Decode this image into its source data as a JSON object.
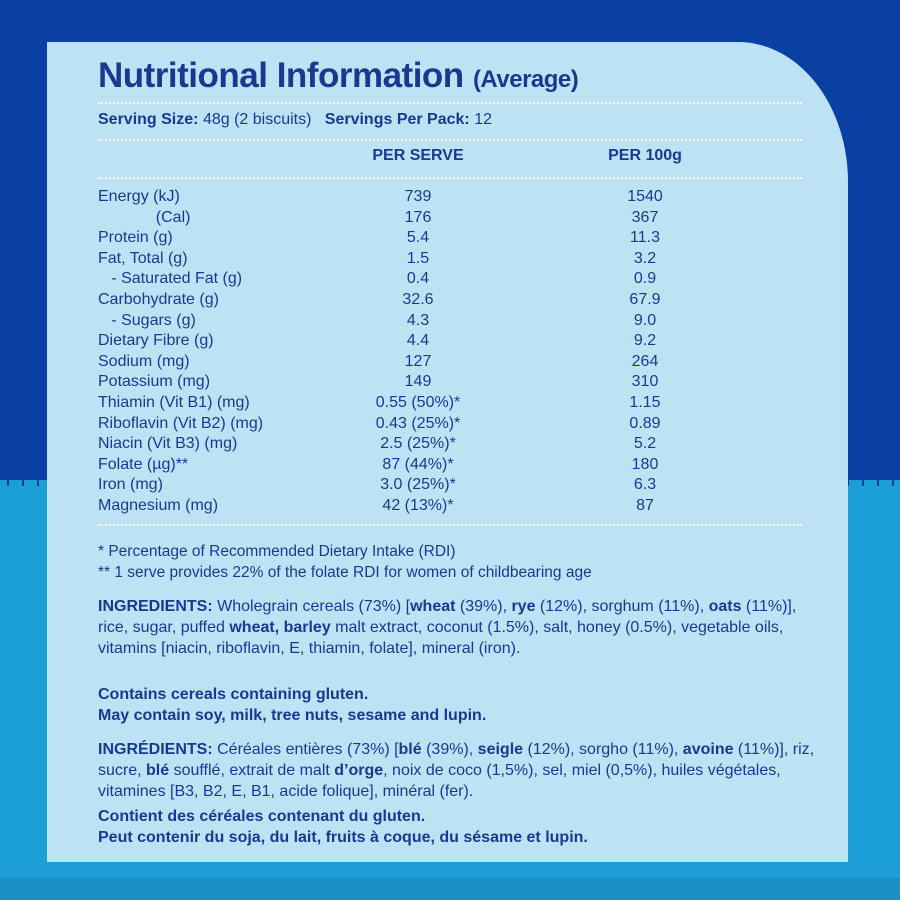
{
  "colors": {
    "background_top": "#0a3fa3",
    "background_bottom": "#1b9ed3",
    "panel": "#bde2f3",
    "text": "#173a8f"
  },
  "title": "Nutritional Information",
  "title_sub": "(Average)",
  "serving": {
    "size_label": "Serving Size:",
    "size_value": "48g (2 biscuits)",
    "per_pack_label": "Servings Per Pack:",
    "per_pack_value": "12"
  },
  "columns": {
    "per_serve": "PER SERVE",
    "per_100g": "PER 100g"
  },
  "rows": [
    {
      "label": "Energy (kJ)",
      "per_serve": "739",
      "per_100g": "1540"
    },
    {
      "label": "             (Cal)",
      "per_serve": "176",
      "per_100g": "367"
    },
    {
      "label": "Protein (g)",
      "per_serve": "5.4",
      "per_100g": "11.3"
    },
    {
      "label": "Fat, Total (g)",
      "per_serve": "1.5",
      "per_100g": "3.2"
    },
    {
      "label": "   - Saturated Fat (g)",
      "per_serve": "0.4",
      "per_100g": "0.9"
    },
    {
      "label": "Carbohydrate (g)",
      "per_serve": "32.6",
      "per_100g": "67.9"
    },
    {
      "label": "   - Sugars (g)",
      "per_serve": "4.3",
      "per_100g": "9.0"
    },
    {
      "label": "Dietary Fibre (g)",
      "per_serve": "4.4",
      "per_100g": "9.2"
    },
    {
      "label": "Sodium (mg)",
      "per_serve": "127",
      "per_100g": "264"
    },
    {
      "label": "Potassium (mg)",
      "per_serve": "149",
      "per_100g": "310"
    },
    {
      "label": "Thiamin (Vit B1) (mg)",
      "per_serve": "0.55 (50%)*",
      "per_100g": "1.15"
    },
    {
      "label": "Riboflavin (Vit B2) (mg)",
      "per_serve": "0.43 (25%)*",
      "per_100g": "0.89"
    },
    {
      "label": "Niacin (Vit B3) (mg)",
      "per_serve": "2.5 (25%)*",
      "per_100g": "5.2"
    },
    {
      "label": "Folate (µg)**",
      "per_serve": "87 (44%)*",
      "per_100g": "180"
    },
    {
      "label": "Iron (mg)",
      "per_serve": "3.0 (25%)*",
      "per_100g": "6.3"
    },
    {
      "label": "Magnesium (mg)",
      "per_serve": "42 (13%)*",
      "per_100g": "87"
    }
  ],
  "notes": [
    "* Percentage of Recommended Dietary Intake (RDI)",
    "** 1 serve provides 22% of the folate RDI for women of childbearing age"
  ],
  "ingredients_en": [
    {
      "t": "INGREDIENTS:",
      "b": true
    },
    {
      "t": " Wholegrain cereals (73%) [",
      "b": false
    },
    {
      "t": "wheat",
      "b": true
    },
    {
      "t": " (39%), ",
      "b": false
    },
    {
      "t": "rye",
      "b": true
    },
    {
      "t": " (12%), sorghum (11%), ",
      "b": false
    },
    {
      "t": "oats",
      "b": true
    },
    {
      "t": " (11%)], rice, sugar, puffed ",
      "b": false
    },
    {
      "t": "wheat, barley",
      "b": true
    },
    {
      "t": " malt extract, coconut (1.5%), salt, honey (0.5%), vegetable oils, vitamins [niacin, riboflavin, E, thiamin, folate], mineral (iron).",
      "b": false
    }
  ],
  "allergens_en": [
    "Contains cereals containing gluten.",
    "May contain soy, milk, tree nuts, sesame and lupin."
  ],
  "ingredients_fr": [
    {
      "t": "INGRÉDIENTS:",
      "b": true
    },
    {
      "t": " Céréales entières (73%) [",
      "b": false
    },
    {
      "t": "blé",
      "b": true
    },
    {
      "t": " (39%), ",
      "b": false
    },
    {
      "t": "seigle",
      "b": true
    },
    {
      "t": " (12%), sorgho (11%), ",
      "b": false
    },
    {
      "t": "avoine",
      "b": true
    },
    {
      "t": " (11%)], riz, sucre, ",
      "b": false
    },
    {
      "t": "blé",
      "b": true
    },
    {
      "t": " soufflé, extrait de malt ",
      "b": false
    },
    {
      "t": "d’orge",
      "b": true
    },
    {
      "t": ", noix de coco (1,5%), sel, miel (0,5%), huiles végétales, vitamines [B3, B2, E, B1, acide folique], minéral (fer).",
      "b": false
    }
  ],
  "allergens_fr": [
    "Contient des céréales contenant du gluten.",
    "Peut contenir du soja, du lait, fruits à coque, du sésame et lupin."
  ]
}
